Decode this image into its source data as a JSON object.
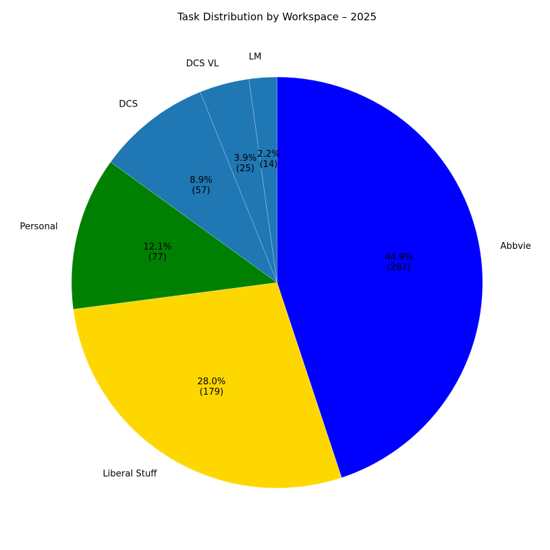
{
  "chart_data": {
    "type": "pie",
    "title": "Task Distribution by Workspace – 2025",
    "categories": [
      "Abbvie",
      "Liberal Stuff",
      "Personal",
      "DCS",
      "DCS VL",
      "LM"
    ],
    "values": [
      287,
      179,
      77,
      57,
      25,
      14
    ],
    "value_labels": [
      "44.9%\n(287)",
      "28.0%\n(179)",
      "12.1%\n(77)",
      "8.9%\n(57)",
      "3.9%\n(25)",
      "2.2%\n(14)"
    ],
    "colors": [
      "#0000ff",
      "#ffd700",
      "#008000",
      "#1f77b4",
      "#1f77b4",
      "#1f77b4"
    ],
    "startangle": 90,
    "counterclock": false
  }
}
